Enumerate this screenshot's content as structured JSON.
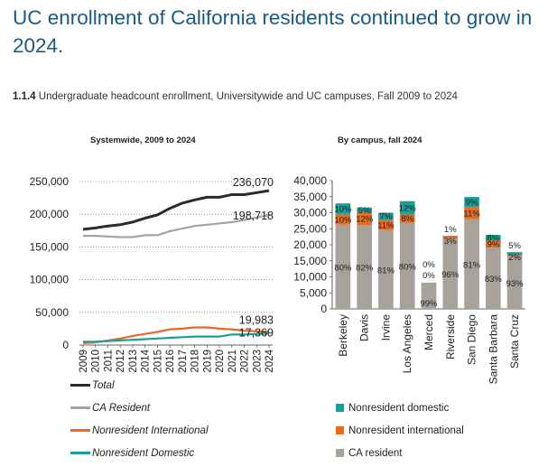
{
  "page": {
    "title": "UC enrollment of California residents continued to grow in 2024.",
    "subtitle_num": "1.1.4",
    "subtitle_text": "Undergraduate headcount enrollment, Universitywide and UC campuses, Fall 2009 to 2024"
  },
  "colors": {
    "total": "#2b2b2b",
    "ca_resident": "#a9a29b",
    "nonres_intl": "#e46c26",
    "nonres_dom": "#1a9e96"
  },
  "chart_data": [
    {
      "type": "line",
      "title": "Systemwide, 2009 to 2024",
      "x": [
        "2009",
        "2010",
        "2011",
        "2012",
        "2013",
        "2014",
        "2015",
        "2016",
        "2017",
        "2018",
        "2019",
        "2020",
        "2021",
        "2022",
        "2023",
        "2024"
      ],
      "ylim": [
        0,
        250000
      ],
      "yticks": [
        0,
        50000,
        100000,
        150000,
        200000,
        250000
      ],
      "ytick_labels": [
        "0",
        "50,000",
        "100,000",
        "150,000",
        "200,000",
        "250,000"
      ],
      "series": [
        {
          "name": "Total",
          "color": "#2b2b2b",
          "values": [
            177000,
            179000,
            182000,
            184000,
            188000,
            194000,
            199000,
            209000,
            217000,
            222000,
            226000,
            226000,
            230000,
            230000,
            233000,
            236070
          ]
        },
        {
          "name": "CA Resident",
          "color": "#a9a29b",
          "values": [
            167000,
            167000,
            166000,
            165000,
            165000,
            168000,
            168000,
            174000,
            178000,
            182000,
            184000,
            186000,
            188000,
            191000,
            195000,
            198718
          ]
        },
        {
          "name": "Nonresident International",
          "color": "#e46c26",
          "values": [
            3000,
            4000,
            7000,
            10000,
            14000,
            17000,
            20000,
            24000,
            25000,
            27000,
            27000,
            25000,
            24000,
            22000,
            21000,
            19983
          ]
        },
        {
          "name": "Nonresident Domestic",
          "color": "#1a9e96",
          "values": [
            5000,
            5000,
            6000,
            7000,
            8000,
            9000,
            10000,
            11000,
            12000,
            13000,
            13000,
            13000,
            16000,
            16000,
            17000,
            17369
          ]
        }
      ],
      "end_labels": [
        {
          "series": 0,
          "text": "236,070"
        },
        {
          "series": 1,
          "text": "198,718"
        },
        {
          "series": 2,
          "text": "19,983"
        },
        {
          "series": 3,
          "text": "17,369"
        }
      ]
    },
    {
      "type": "bar",
      "stacked": true,
      "title": "By campus, fall 2024",
      "categories": [
        "Berkeley",
        "Davis",
        "Irvine",
        "Los Angeles",
        "Merced",
        "Riverside",
        "San Diego",
        "Santa Barbara",
        "Santa Cruz"
      ],
      "ylim": [
        0,
        40000
      ],
      "yticks": [
        0,
        5000,
        10000,
        15000,
        20000,
        25000,
        30000,
        35000,
        40000
      ],
      "ytick_labels": [
        "0",
        "5,000",
        "10,000",
        "15,000",
        "20,000",
        "25,000",
        "30,000",
        "35,000",
        "40,000"
      ],
      "series": [
        {
          "name": "CA resident",
          "color": "#a9a29b",
          "values": [
            26300,
            26200,
            24600,
            26900,
            8200,
            21900,
            28000,
            19200,
            16400
          ],
          "labels": [
            "80%",
            "82%",
            "81%",
            "80%",
            "99%",
            "96%",
            "81%",
            "83%",
            "93%"
          ]
        },
        {
          "name": "Nonresident international",
          "color": "#e46c26",
          "values": [
            3300,
            3800,
            3300,
            2700,
            0,
            700,
            3800,
            2100,
            400
          ],
          "labels": [
            "10%",
            "12%",
            "11%",
            "8%",
            "0%",
            "3%",
            "11%",
            "9%",
            "2%"
          ]
        },
        {
          "name": "Nonresident domestic",
          "color": "#1a9e96",
          "values": [
            3300,
            1600,
            2100,
            4000,
            0,
            200,
            3100,
            1800,
            900
          ],
          "labels": [
            "10%",
            "5%",
            "7%",
            "12%",
            "0%",
            "1%",
            "9%",
            "8%",
            "5%"
          ]
        }
      ]
    }
  ],
  "legend_left": [
    "Total",
    "CA Resident",
    "Nonresident International",
    "Nonresident Domestic"
  ],
  "legend_right": [
    "Nonresident domestic",
    "Nonresident international",
    "CA resident"
  ]
}
